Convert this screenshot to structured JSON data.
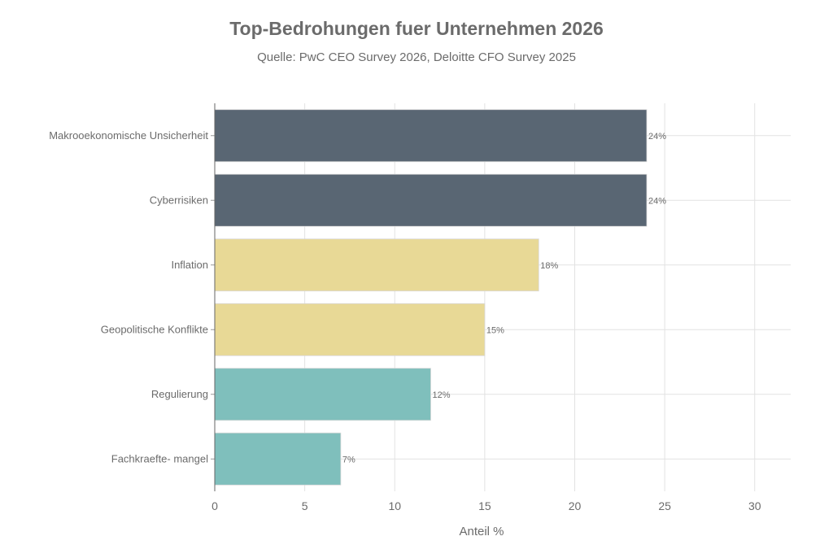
{
  "chart_data": {
    "type": "bar",
    "orientation": "horizontal",
    "title": "Top-Bedrohungen fuer Unternehmen 2026",
    "subtitle": "Quelle: PwC CEO Survey 2026, Deloitte CFO Survey 2025",
    "xlabel": "Anteil %",
    "ylabel": "",
    "xlim": [
      0,
      32
    ],
    "xticks": [
      0,
      5,
      10,
      15,
      20,
      25,
      30
    ],
    "grid": true,
    "categories": [
      "Makrooekonomische Unsicherheit",
      "Cyberrisiken",
      "Inflation",
      "Geopolitische Konflikte",
      "Regulierung",
      "Fachkraefte- mangel"
    ],
    "values": [
      24,
      24,
      18,
      15,
      12,
      7
    ],
    "data_labels": [
      "24%",
      "24%",
      "18%",
      "15%",
      "12%",
      "7%"
    ],
    "colors": [
      "#596673",
      "#596673",
      "#e8d996",
      "#e8d996",
      "#7fbfbc",
      "#7fbfbc"
    ]
  }
}
